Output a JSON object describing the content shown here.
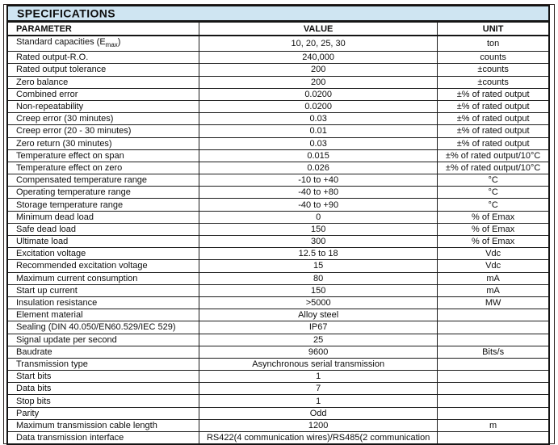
{
  "colors": {
    "title_band_bg": "#cfe5f2",
    "border": "#141414",
    "text": "#0e0e0e",
    "page_bg": "#ffffff"
  },
  "header": {
    "title": "SPECIFICATIONS"
  },
  "table": {
    "columns": [
      "PARAMETER",
      "VALUE",
      "UNIT"
    ],
    "rows": [
      {
        "parameter": "Standard capacities (E_{max})",
        "value": "10, 20, 25, 30",
        "unit": "ton"
      },
      {
        "parameter": "Rated output-R.O.",
        "value": "240,000",
        "unit": "counts"
      },
      {
        "parameter": "Rated output tolerance",
        "value": "200",
        "unit": "±counts"
      },
      {
        "parameter": "Zero balance",
        "value": "200",
        "unit": "±counts"
      },
      {
        "parameter": "Combined error",
        "value": "0.0200",
        "unit": "±% of rated output"
      },
      {
        "parameter": "Non-repeatability",
        "value": "0.0200",
        "unit": "±% of rated output"
      },
      {
        "parameter": "Creep error (30 minutes)",
        "value": "0.03",
        "unit": "±% of rated output"
      },
      {
        "parameter": "Creep error (20 - 30 minutes)",
        "value": "0.01",
        "unit": "±% of rated output"
      },
      {
        "parameter": "Zero return (30 minutes)",
        "value": "0.03",
        "unit": "±% of rated output"
      },
      {
        "parameter": "Temperature effect on span",
        "value": "0.015",
        "unit": "±% of rated output/10°C"
      },
      {
        "parameter": "Temperature effect on zero",
        "value": "0.026",
        "unit": "±% of rated output/10°C"
      },
      {
        "parameter": "Compensated temperature range",
        "value": "-10 to +40",
        "unit": "°C"
      },
      {
        "parameter": "Operating temperature range",
        "value": "-40 to +80",
        "unit": "°C"
      },
      {
        "parameter": "Storage temperature range",
        "value": "-40 to +90",
        "unit": "°C"
      },
      {
        "parameter": "Minimum dead load",
        "value": "0",
        "unit": "% of Emax"
      },
      {
        "parameter": "Safe dead load",
        "value": "150",
        "unit": "% of Emax"
      },
      {
        "parameter": "Ultimate load",
        "value": "300",
        "unit": "% of Emax"
      },
      {
        "parameter": "Excitation voltage",
        "value": "12.5 to 18",
        "unit": "Vdc"
      },
      {
        "parameter": "Recommended excitation voltage",
        "value": "15",
        "unit": "Vdc"
      },
      {
        "parameter": "Maximum current consumption",
        "value": "80",
        "unit": "mA"
      },
      {
        "parameter": "Start up current",
        "value": "150",
        "unit": "mA"
      },
      {
        "parameter": "Insulation resistance",
        "value": ">5000",
        "unit": "MW"
      },
      {
        "parameter": "Element material",
        "value": "Alloy steel",
        "unit": ""
      },
      {
        "parameter": "Sealing (DIN 40.050/EN60.529/IEC 529)",
        "value": "IP67",
        "unit": ""
      },
      {
        "parameter": "Signal update per second",
        "value": "25",
        "unit": ""
      },
      {
        "parameter": "Baudrate",
        "value": "9600",
        "unit": "Bits/s"
      },
      {
        "parameter": "Transmission type",
        "value": "Asynchronous serial transmission",
        "unit": ""
      },
      {
        "parameter": "Start bits",
        "value": "1",
        "unit": ""
      },
      {
        "parameter": "Data bits",
        "value": "7",
        "unit": ""
      },
      {
        "parameter": "Stop bits",
        "value": "1",
        "unit": ""
      },
      {
        "parameter": "Parity",
        "value": "Odd",
        "unit": ""
      },
      {
        "parameter": "Maximum transmission cable length",
        "value": "1200",
        "unit": "m"
      },
      {
        "parameter": "Data transmission interface",
        "value": "RS422(4 communication wires)/RS485(2 communication",
        "unit": ""
      }
    ]
  }
}
